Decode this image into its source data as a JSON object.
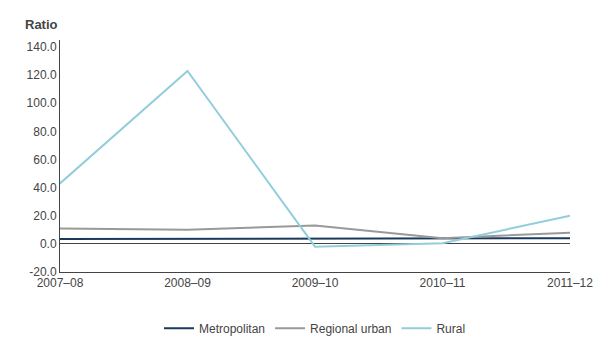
{
  "chart_data": {
    "type": "line",
    "ylabel": "Ratio",
    "categories": [
      "2007–08",
      "2008–09",
      "2009–10",
      "2010–11",
      "2011–12"
    ],
    "series": [
      {
        "name": "Metropolitan",
        "color": "#1a3a5c",
        "values": [
          3.5,
          3.5,
          3.5,
          3.5,
          4.0
        ]
      },
      {
        "name": "Regional urban",
        "color": "#999999",
        "values": [
          11.0,
          10.0,
          13.0,
          4.0,
          8.0
        ]
      },
      {
        "name": "Rural",
        "color": "#92cddc",
        "values": [
          43.0,
          123.0,
          -2.0,
          0.5,
          20.0
        ]
      }
    ],
    "ylim": [
      -20.0,
      145.0
    ],
    "yticks": [
      {
        "value": -20.0,
        "label": "-20.0"
      },
      {
        "value": 0.0,
        "label": "0.0"
      },
      {
        "value": 20.0,
        "label": "20.0"
      },
      {
        "value": 40.0,
        "label": "40.0"
      },
      {
        "value": 60.0,
        "label": "60.0"
      },
      {
        "value": 80.0,
        "label": "80.0"
      },
      {
        "value": 100.0,
        "label": "100.0"
      },
      {
        "value": 120.0,
        "label": "120.0"
      },
      {
        "value": 140.0,
        "label": "140.0"
      }
    ],
    "grid": false,
    "legend": "bottom"
  }
}
